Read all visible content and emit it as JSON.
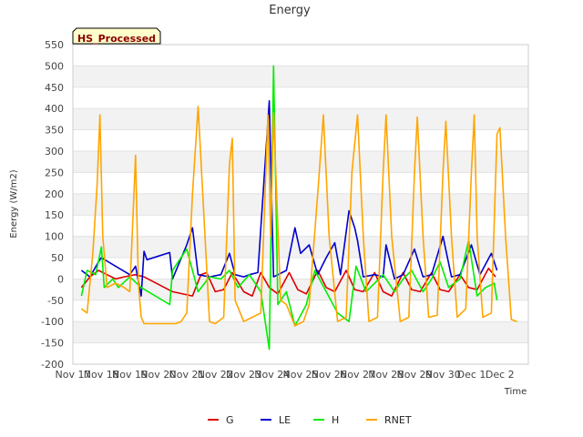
{
  "chart_data": {
    "type": "line",
    "title": "Energy",
    "xlabel": "Time",
    "ylabel": "Energy (W/m2)",
    "annotation": "HS_Processed",
    "ylim": [
      -200,
      550
    ],
    "yticks": [
      -200,
      -150,
      -100,
      -50,
      0,
      50,
      100,
      150,
      200,
      250,
      300,
      350,
      400,
      450,
      500,
      550
    ],
    "xlim": [
      0,
      16
    ],
    "xtick_labels": [
      "Nov 17",
      "Nov 18",
      "Nov 19",
      "Nov 20",
      "Nov 21",
      "Nov 22",
      "Nov 23",
      "Nov 24",
      "Nov 25",
      "Nov 26",
      "Nov 27",
      "Nov 28",
      "Nov 29",
      "Nov 30",
      "Dec 1",
      "Dec 2"
    ],
    "x_unit": "days since Nov 17 00:00",
    "legend": {
      "position": "bottom-center"
    },
    "series": [
      {
        "name": "G",
        "color": "#dd0000",
        "points": [
          [
            0.3,
            -20
          ],
          [
            0.6,
            5
          ],
          [
            0.9,
            20
          ],
          [
            1.2,
            10
          ],
          [
            1.5,
            0
          ],
          [
            1.8,
            5
          ],
          [
            2.2,
            10
          ],
          [
            2.5,
            5
          ],
          [
            3.5,
            -30
          ],
          [
            4.2,
            -40
          ],
          [
            4.5,
            10
          ],
          [
            4.7,
            15
          ],
          [
            5.0,
            -30
          ],
          [
            5.3,
            -25
          ],
          [
            5.6,
            15
          ],
          [
            6.0,
            -30
          ],
          [
            6.3,
            -40
          ],
          [
            6.6,
            15
          ],
          [
            6.9,
            -20
          ],
          [
            7.2,
            -35
          ],
          [
            7.6,
            15
          ],
          [
            7.9,
            -25
          ],
          [
            8.2,
            -35
          ],
          [
            8.6,
            20
          ],
          [
            8.9,
            -20
          ],
          [
            9.2,
            -30
          ],
          [
            9.6,
            20
          ],
          [
            9.9,
            -25
          ],
          [
            10.2,
            -30
          ],
          [
            10.6,
            15
          ],
          [
            10.9,
            -30
          ],
          [
            11.2,
            -40
          ],
          [
            11.6,
            15
          ],
          [
            11.9,
            -25
          ],
          [
            12.2,
            -30
          ],
          [
            12.6,
            15
          ],
          [
            12.9,
            -25
          ],
          [
            13.2,
            -30
          ],
          [
            13.6,
            10
          ],
          [
            13.9,
            -20
          ],
          [
            14.2,
            -25
          ],
          [
            14.6,
            25
          ],
          [
            14.85,
            5
          ]
        ]
      },
      {
        "name": "LE",
        "color": "#0000cc",
        "points": [
          [
            0.3,
            20
          ],
          [
            0.6,
            5
          ],
          [
            0.9,
            40
          ],
          [
            1.0,
            50
          ],
          [
            1.5,
            30
          ],
          [
            2.0,
            10
          ],
          [
            2.2,
            30
          ],
          [
            2.4,
            -40
          ],
          [
            2.5,
            65
          ],
          [
            2.6,
            45
          ],
          [
            3.4,
            62
          ],
          [
            3.5,
            0
          ],
          [
            4.0,
            80
          ],
          [
            4.2,
            120
          ],
          [
            4.4,
            10
          ],
          [
            4.8,
            5
          ],
          [
            5.2,
            10
          ],
          [
            5.5,
            60
          ],
          [
            5.7,
            10
          ],
          [
            6.0,
            5
          ],
          [
            6.2,
            10
          ],
          [
            6.5,
            15
          ],
          [
            6.9,
            418
          ],
          [
            7.05,
            5
          ],
          [
            7.5,
            20
          ],
          [
            7.8,
            120
          ],
          [
            8.0,
            60
          ],
          [
            8.3,
            80
          ],
          [
            8.6,
            10
          ],
          [
            8.9,
            50
          ],
          [
            9.2,
            85
          ],
          [
            9.4,
            10
          ],
          [
            9.7,
            160
          ],
          [
            9.9,
            120
          ],
          [
            10.0,
            90
          ],
          [
            10.2,
            5
          ],
          [
            10.6,
            10
          ],
          [
            10.9,
            5
          ],
          [
            11.0,
            80
          ],
          [
            11.3,
            0
          ],
          [
            11.6,
            10
          ],
          [
            12.0,
            70
          ],
          [
            12.3,
            5
          ],
          [
            12.6,
            10
          ],
          [
            13.0,
            100
          ],
          [
            13.3,
            5
          ],
          [
            13.6,
            10
          ],
          [
            14.0,
            80
          ],
          [
            14.3,
            10
          ],
          [
            14.7,
            60
          ],
          [
            14.9,
            20
          ]
        ]
      },
      {
        "name": "H",
        "color": "#00ee00",
        "points": [
          [
            0.3,
            -40
          ],
          [
            0.5,
            20
          ],
          [
            0.8,
            10
          ],
          [
            1.0,
            75
          ],
          [
            1.1,
            -20
          ],
          [
            1.4,
            0
          ],
          [
            1.6,
            -20
          ],
          [
            2.0,
            5
          ],
          [
            2.4,
            -20
          ],
          [
            3.4,
            -60
          ],
          [
            3.5,
            20
          ],
          [
            4.0,
            70
          ],
          [
            4.2,
            20
          ],
          [
            4.4,
            -30
          ],
          [
            4.8,
            5
          ],
          [
            5.2,
            0
          ],
          [
            5.5,
            20
          ],
          [
            5.8,
            -20
          ],
          [
            6.2,
            10
          ],
          [
            6.6,
            -30
          ],
          [
            6.9,
            -165
          ],
          [
            7.05,
            500
          ],
          [
            7.2,
            -60
          ],
          [
            7.5,
            -30
          ],
          [
            7.8,
            -110
          ],
          [
            8.2,
            -60
          ],
          [
            8.5,
            20
          ],
          [
            8.9,
            -30
          ],
          [
            9.3,
            -80
          ],
          [
            9.7,
            -100
          ],
          [
            9.95,
            30
          ],
          [
            10.3,
            -30
          ],
          [
            10.6,
            -10
          ],
          [
            10.9,
            10
          ],
          [
            11.3,
            -30
          ],
          [
            11.6,
            0
          ],
          [
            11.9,
            20
          ],
          [
            12.3,
            -30
          ],
          [
            12.6,
            0
          ],
          [
            12.9,
            40
          ],
          [
            13.2,
            -20
          ],
          [
            13.6,
            0
          ],
          [
            13.9,
            90
          ],
          [
            14.2,
            -40
          ],
          [
            14.5,
            -20
          ],
          [
            14.8,
            -10
          ],
          [
            14.9,
            -50
          ]
        ]
      },
      {
        "name": "RNET",
        "color": "#ffa500",
        "points": [
          [
            0.3,
            -70
          ],
          [
            0.5,
            -80
          ],
          [
            0.7,
            60
          ],
          [
            0.85,
            220
          ],
          [
            0.95,
            385
          ],
          [
            1.05,
            100
          ],
          [
            1.2,
            -20
          ],
          [
            1.5,
            -10
          ],
          [
            1.8,
            -20
          ],
          [
            2.0,
            -30
          ],
          [
            2.2,
            290
          ],
          [
            2.3,
            -10
          ],
          [
            2.4,
            -90
          ],
          [
            2.5,
            -105
          ],
          [
            2.7,
            -105
          ],
          [
            3.6,
            -105
          ],
          [
            3.8,
            -100
          ],
          [
            4.0,
            -80
          ],
          [
            4.2,
            200
          ],
          [
            4.4,
            405
          ],
          [
            4.6,
            150
          ],
          [
            4.8,
            -100
          ],
          [
            5.0,
            -105
          ],
          [
            5.3,
            -90
          ],
          [
            5.5,
            270
          ],
          [
            5.6,
            330
          ],
          [
            5.7,
            -50
          ],
          [
            6.0,
            -100
          ],
          [
            6.3,
            -90
          ],
          [
            6.6,
            -80
          ],
          [
            6.85,
            385
          ],
          [
            6.95,
            100
          ],
          [
            7.05,
            390
          ],
          [
            7.3,
            -50
          ],
          [
            7.5,
            -60
          ],
          [
            7.8,
            -110
          ],
          [
            8.1,
            -100
          ],
          [
            8.3,
            -60
          ],
          [
            8.6,
            200
          ],
          [
            8.8,
            385
          ],
          [
            9.0,
            100
          ],
          [
            9.3,
            -100
          ],
          [
            9.6,
            -90
          ],
          [
            9.8,
            250
          ],
          [
            10.0,
            385
          ],
          [
            10.2,
            100
          ],
          [
            10.4,
            -100
          ],
          [
            10.7,
            -90
          ],
          [
            10.9,
            250
          ],
          [
            11.0,
            385
          ],
          [
            11.2,
            100
          ],
          [
            11.5,
            -100
          ],
          [
            11.8,
            -90
          ],
          [
            12.0,
            250
          ],
          [
            12.1,
            380
          ],
          [
            12.3,
            100
          ],
          [
            12.5,
            -90
          ],
          [
            12.8,
            -85
          ],
          [
            13.0,
            250
          ],
          [
            13.1,
            370
          ],
          [
            13.3,
            100
          ],
          [
            13.5,
            -90
          ],
          [
            13.8,
            -70
          ],
          [
            14.0,
            250
          ],
          [
            14.1,
            385
          ],
          [
            14.2,
            100
          ],
          [
            14.4,
            -90
          ],
          [
            14.7,
            -80
          ],
          [
            14.9,
            340
          ],
          [
            15.0,
            355
          ],
          [
            15.2,
            100
          ],
          [
            15.4,
            -95
          ],
          [
            15.6,
            -100
          ]
        ]
      }
    ]
  }
}
